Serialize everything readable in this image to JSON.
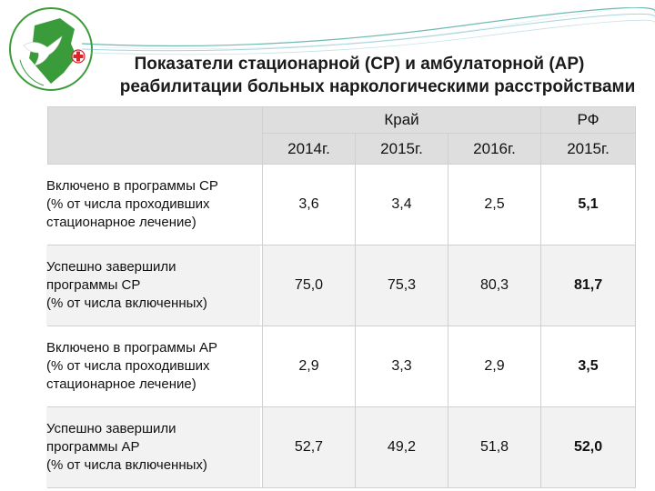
{
  "title": {
    "line1": "Показатели  стационарной (СР) и амбулаторной (АР)",
    "line2": "реабилитации больных наркологическими расстройствами"
  },
  "colors": {
    "logo_green": "#3a9b3a",
    "logo_red": "#d8262c",
    "header_bg": "#dedede",
    "swoosh": "#2f9e8f"
  },
  "table": {
    "region_headers": [
      "Край",
      "РФ"
    ],
    "years": [
      "2014г.",
      "2015г.",
      "2016г.",
      "2015г."
    ],
    "rows": [
      {
        "label": [
          "Включено в программы СР",
          "(% от числа проходивших",
          "стационарное лечение)"
        ],
        "values": [
          "3,6",
          "3,4",
          "2,5",
          "5,1"
        ]
      },
      {
        "label": [
          "Успешно завершили",
          "программы СР",
          "(% от числа включенных)"
        ],
        "values": [
          "75,0",
          "75,3",
          "80,3",
          "81,7"
        ]
      },
      {
        "label": [
          "Включено в программы АР",
          "(% от числа проходивших",
          "стационарное лечение)"
        ],
        "values": [
          "2,9",
          "3,3",
          "2,9",
          "3,5"
        ]
      },
      {
        "label": [
          "Успешно завершили",
          "программы АР",
          "(% от числа включенных)"
        ],
        "values": [
          "52,7",
          "49,2",
          "51,8",
          "52,0"
        ]
      }
    ]
  }
}
